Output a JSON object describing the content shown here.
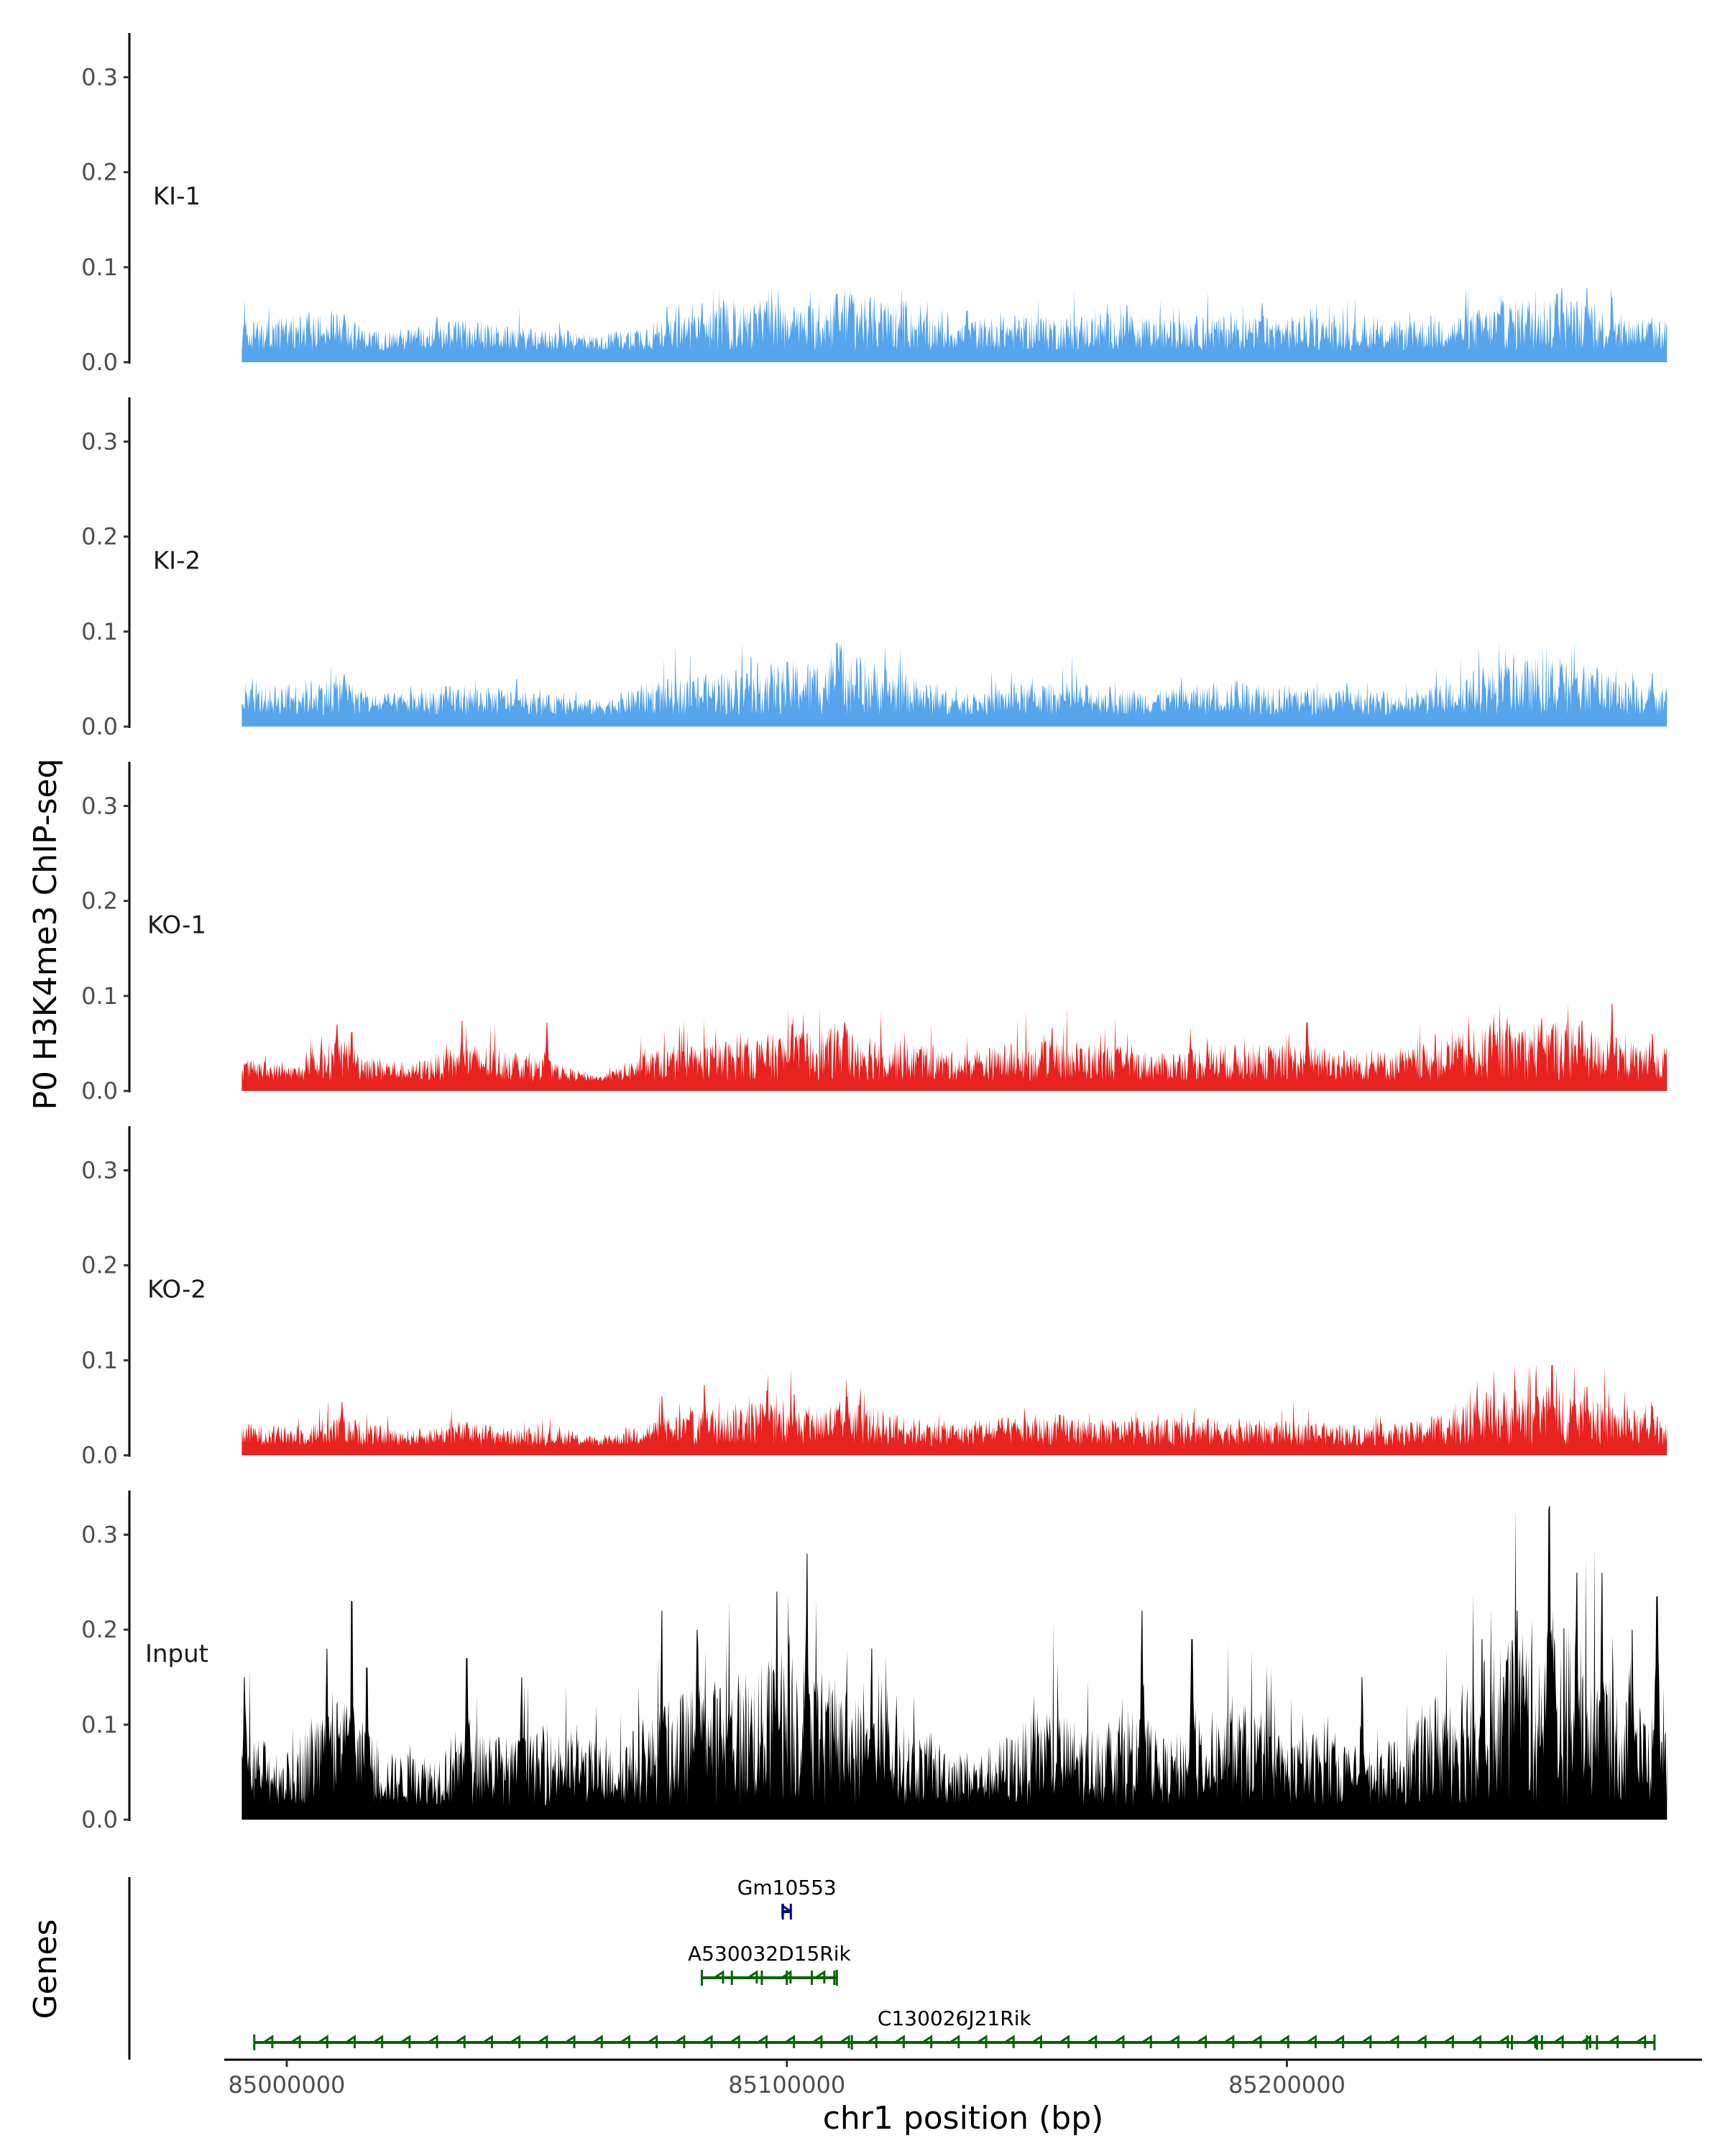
{
  "chart_data": {
    "type": "area",
    "ylabel": "P0 H3K4me3 ChIP-seq",
    "xlabel": "chr1 position (bp)",
    "genes_label": "Genes",
    "xlim": [
      84987500,
      85283000
    ],
    "ylim": [
      0,
      0.345
    ],
    "y_ticks": [
      {
        "value": 0.0,
        "label": "0.0"
      },
      {
        "value": 0.1,
        "label": "0.1"
      },
      {
        "value": 0.2,
        "label": "0.2"
      },
      {
        "value": 0.3,
        "label": "0.3"
      }
    ],
    "x_ticks": [
      {
        "value": 85000000,
        "label": "85000000"
      },
      {
        "value": 85100000,
        "label": "85100000"
      },
      {
        "value": 85200000,
        "label": "85200000"
      }
    ],
    "signal_range": [
      84991000,
      85276000
    ],
    "tracks": [
      {
        "name": "KI-1",
        "color": "#56a5ec",
        "baseline": 0.012,
        "max": 0.078,
        "profile": [
          [
            84991000,
            0.022
          ],
          [
            85002000,
            0.028
          ],
          [
            85010000,
            0.03
          ],
          [
            85017000,
            0.016
          ],
          [
            85025000,
            0.018
          ],
          [
            85035000,
            0.024
          ],
          [
            85045000,
            0.018
          ],
          [
            85055000,
            0.016
          ],
          [
            85063000,
            0.012
          ],
          [
            85072000,
            0.022
          ],
          [
            85085000,
            0.036
          ],
          [
            85095000,
            0.038
          ],
          [
            85105000,
            0.036
          ],
          [
            85112000,
            0.048
          ],
          [
            85125000,
            0.032
          ],
          [
            85135000,
            0.022
          ],
          [
            85145000,
            0.028
          ],
          [
            85155000,
            0.026
          ],
          [
            85165000,
            0.03
          ],
          [
            85175000,
            0.024
          ],
          [
            85185000,
            0.028
          ],
          [
            85195000,
            0.026
          ],
          [
            85205000,
            0.028
          ],
          [
            85215000,
            0.022
          ],
          [
            85225000,
            0.024
          ],
          [
            85235000,
            0.03
          ],
          [
            85245000,
            0.04
          ],
          [
            85255000,
            0.044
          ],
          [
            85265000,
            0.03
          ],
          [
            85276000,
            0.024
          ]
        ],
        "peaks": [
          [
            85011500,
            0.05
          ],
          [
            85030000,
            0.048
          ],
          [
            85076000,
            0.058
          ],
          [
            85083000,
            0.062
          ],
          [
            85096000,
            0.064
          ],
          [
            85101500,
            0.058
          ],
          [
            85110000,
            0.072
          ],
          [
            85112500,
            0.066
          ],
          [
            85136000,
            0.054
          ],
          [
            85168000,
            0.06
          ],
          [
            85195000,
            0.062
          ],
          [
            85254000,
            0.072
          ],
          [
            85260000,
            0.078
          ],
          [
            85265000,
            0.068
          ]
        ]
      },
      {
        "name": "KI-2",
        "color": "#56a5ec",
        "baseline": 0.012,
        "max": 0.088,
        "profile": [
          [
            84991000,
            0.02
          ],
          [
            85002000,
            0.026
          ],
          [
            85010000,
            0.032
          ],
          [
            85017000,
            0.016
          ],
          [
            85025000,
            0.018
          ],
          [
            85035000,
            0.024
          ],
          [
            85045000,
            0.02
          ],
          [
            85055000,
            0.014
          ],
          [
            85063000,
            0.012
          ],
          [
            85072000,
            0.026
          ],
          [
            85085000,
            0.032
          ],
          [
            85095000,
            0.04
          ],
          [
            85105000,
            0.042
          ],
          [
            85112000,
            0.05
          ],
          [
            85125000,
            0.03
          ],
          [
            85135000,
            0.014
          ],
          [
            85145000,
            0.024
          ],
          [
            85155000,
            0.026
          ],
          [
            85165000,
            0.022
          ],
          [
            85175000,
            0.02
          ],
          [
            85185000,
            0.024
          ],
          [
            85195000,
            0.026
          ],
          [
            85205000,
            0.022
          ],
          [
            85215000,
            0.018
          ],
          [
            85225000,
            0.016
          ],
          [
            85235000,
            0.032
          ],
          [
            85245000,
            0.042
          ],
          [
            85255000,
            0.046
          ],
          [
            85265000,
            0.03
          ],
          [
            85276000,
            0.022
          ]
        ],
        "peaks": [
          [
            85011500,
            0.055
          ],
          [
            85046000,
            0.05
          ],
          [
            85092000,
            0.056
          ],
          [
            85110000,
            0.088
          ],
          [
            85114000,
            0.07
          ],
          [
            85190000,
            0.048
          ],
          [
            85212000,
            0.046
          ],
          [
            85255000,
            0.066
          ],
          [
            85262000,
            0.062
          ],
          [
            85273000,
            0.056
          ]
        ]
      },
      {
        "name": "KO-1",
        "color": "#e8231f",
        "baseline": 0.01,
        "max": 0.092,
        "profile": [
          [
            84991000,
            0.018
          ],
          [
            85002000,
            0.012
          ],
          [
            85010000,
            0.036
          ],
          [
            85017000,
            0.02
          ],
          [
            85025000,
            0.014
          ],
          [
            85035000,
            0.03
          ],
          [
            85045000,
            0.026
          ],
          [
            85055000,
            0.012
          ],
          [
            85063000,
            0.004
          ],
          [
            85072000,
            0.024
          ],
          [
            85085000,
            0.03
          ],
          [
            85095000,
            0.036
          ],
          [
            85105000,
            0.04
          ],
          [
            85112000,
            0.044
          ],
          [
            85125000,
            0.03
          ],
          [
            85135000,
            0.022
          ],
          [
            85145000,
            0.03
          ],
          [
            85155000,
            0.032
          ],
          [
            85165000,
            0.028
          ],
          [
            85175000,
            0.022
          ],
          [
            85185000,
            0.03
          ],
          [
            85195000,
            0.028
          ],
          [
            85205000,
            0.03
          ],
          [
            85215000,
            0.022
          ],
          [
            85225000,
            0.026
          ],
          [
            85235000,
            0.038
          ],
          [
            85245000,
            0.046
          ],
          [
            85255000,
            0.05
          ],
          [
            85265000,
            0.034
          ],
          [
            85276000,
            0.026
          ]
        ],
        "peaks": [
          [
            85010000,
            0.07
          ],
          [
            85013000,
            0.062
          ],
          [
            85035000,
            0.074
          ],
          [
            85052000,
            0.072
          ],
          [
            85101000,
            0.07
          ],
          [
            85111500,
            0.072
          ],
          [
            85153000,
            0.066
          ],
          [
            85204000,
            0.072
          ],
          [
            85259000,
            0.074
          ],
          [
            85265000,
            0.092
          ],
          [
            85273000,
            0.06
          ]
        ]
      },
      {
        "name": "KO-2",
        "color": "#e8231f",
        "baseline": 0.01,
        "max": 0.095,
        "profile": [
          [
            84991000,
            0.018
          ],
          [
            85002000,
            0.014
          ],
          [
            85010000,
            0.026
          ],
          [
            85017000,
            0.016
          ],
          [
            85025000,
            0.012
          ],
          [
            85035000,
            0.02
          ],
          [
            85045000,
            0.014
          ],
          [
            85055000,
            0.012
          ],
          [
            85063000,
            0.006
          ],
          [
            85072000,
            0.02
          ],
          [
            85085000,
            0.03
          ],
          [
            85095000,
            0.036
          ],
          [
            85105000,
            0.03
          ],
          [
            85112000,
            0.036
          ],
          [
            85125000,
            0.022
          ],
          [
            85135000,
            0.018
          ],
          [
            85145000,
            0.022
          ],
          [
            85155000,
            0.024
          ],
          [
            85165000,
            0.02
          ],
          [
            85175000,
            0.02
          ],
          [
            85185000,
            0.022
          ],
          [
            85195000,
            0.02
          ],
          [
            85205000,
            0.018
          ],
          [
            85215000,
            0.016
          ],
          [
            85225000,
            0.018
          ],
          [
            85235000,
            0.034
          ],
          [
            85245000,
            0.046
          ],
          [
            85255000,
            0.05
          ],
          [
            85265000,
            0.032
          ],
          [
            85276000,
            0.022
          ]
        ],
        "peaks": [
          [
            85011000,
            0.056
          ],
          [
            85075000,
            0.062
          ],
          [
            85083500,
            0.074
          ],
          [
            85096000,
            0.068
          ],
          [
            85101500,
            0.064
          ],
          [
            85112000,
            0.062
          ],
          [
            85238000,
            0.066
          ],
          [
            85250000,
            0.062
          ],
          [
            85253000,
            0.095
          ],
          [
            85260000,
            0.072
          ],
          [
            85273000,
            0.052
          ]
        ]
      },
      {
        "name": "Input",
        "color": "#000000",
        "baseline": 0.015,
        "max": 0.33,
        "profile": [
          [
            84991000,
            0.06
          ],
          [
            85000000,
            0.04
          ],
          [
            85008000,
            0.09
          ],
          [
            85014000,
            0.07
          ],
          [
            85020000,
            0.04
          ],
          [
            85030000,
            0.04
          ],
          [
            85036000,
            0.07
          ],
          [
            85045000,
            0.05
          ],
          [
            85055000,
            0.06
          ],
          [
            85065000,
            0.045
          ],
          [
            85073000,
            0.07
          ],
          [
            85080000,
            0.09
          ],
          [
            85088000,
            0.1
          ],
          [
            85095000,
            0.11
          ],
          [
            85101000,
            0.13
          ],
          [
            85108000,
            0.1
          ],
          [
            85116000,
            0.08
          ],
          [
            85124000,
            0.06
          ],
          [
            85130000,
            0.05
          ],
          [
            85138000,
            0.04
          ],
          [
            85146000,
            0.06
          ],
          [
            85152000,
            0.08
          ],
          [
            85160000,
            0.06
          ],
          [
            85168000,
            0.08
          ],
          [
            85176000,
            0.05
          ],
          [
            85184000,
            0.07
          ],
          [
            85192000,
            0.08
          ],
          [
            85200000,
            0.05
          ],
          [
            85208000,
            0.06
          ],
          [
            85216000,
            0.04
          ],
          [
            85225000,
            0.06
          ],
          [
            85232000,
            0.1
          ],
          [
            85240000,
            0.12
          ],
          [
            85248000,
            0.14
          ],
          [
            85256000,
            0.14
          ],
          [
            85264000,
            0.1
          ],
          [
            85270000,
            0.08
          ],
          [
            85276000,
            0.06
          ]
        ],
        "peaks": [
          [
            84991500,
            0.15
          ],
          [
            85008000,
            0.18
          ],
          [
            85013000,
            0.23
          ],
          [
            85016000,
            0.16
          ],
          [
            85036000,
            0.17
          ],
          [
            85047000,
            0.15
          ],
          [
            85075000,
            0.22
          ],
          [
            85082000,
            0.2
          ],
          [
            85098000,
            0.24
          ],
          [
            85104000,
            0.28
          ],
          [
            85117000,
            0.18
          ],
          [
            85171000,
            0.22
          ],
          [
            85181000,
            0.19
          ],
          [
            85215000,
            0.15
          ],
          [
            85239000,
            0.19
          ],
          [
            85246000,
            0.22
          ],
          [
            85252500,
            0.33
          ],
          [
            85258000,
            0.26
          ],
          [
            85263000,
            0.26
          ],
          [
            85269000,
            0.2
          ],
          [
            85274000,
            0.235
          ]
        ]
      }
    ],
    "genes": [
      {
        "name": "Gm10553",
        "start": 85099200,
        "end": 85100800,
        "strand": "+",
        "color": "#00008b",
        "row": 1,
        "exons": []
      },
      {
        "name": "A530032D15Rik",
        "start": 85083000,
        "end": 85110000,
        "strand": "-",
        "color": "#006400",
        "row": 2,
        "exons": [
          85089000,
          85095000,
          85100000,
          85105000,
          85109500
        ]
      },
      {
        "name": "C130026J21Rik",
        "start": 84993500,
        "end": 85273500,
        "strand": "-",
        "color": "#006400",
        "row": 3,
        "exons": [
          85113000,
          85245000,
          85250000,
          85251000,
          85260000,
          85262000
        ]
      }
    ]
  }
}
